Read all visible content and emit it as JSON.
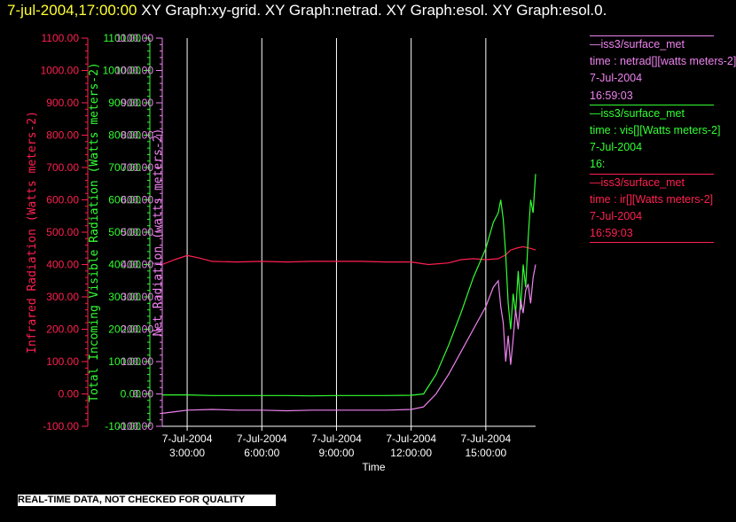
{
  "header": {
    "timestamp": "7-jul-2004,17:00:00",
    "graphs": "XY Graph:xy-grid.  XY Graph:netrad.  XY Graph:esol.  XY Graph:esol.0."
  },
  "colors": {
    "ir": "#ff2050",
    "vis": "#33ff33",
    "net": "#ee82ee",
    "grid": "#ffffff",
    "axis": "#ffffff"
  },
  "legend": [
    {
      "key": "net",
      "lines": [
        "—iss3/surface_met",
        "time : netrad[][watts meters-2]",
        "7-Jul-2004",
        "16:59:03"
      ]
    },
    {
      "key": "vis",
      "lines": [
        "—iss3/surface_met",
        "time : vis[][Watts meters-2]",
        "7-Jul-2004",
        "16:"
      ]
    },
    {
      "key": "ir",
      "lines": [
        "—iss3/surface_met",
        "time : ir[][Watts meters-2]",
        "7-Jul-2004",
        "16:59:03"
      ]
    }
  ],
  "disclaimer": "REAL-TIME DATA, NOT CHECKED FOR QUALITY",
  "chart_data": {
    "type": "line",
    "xlabel": "Time",
    "x_ticks": [
      {
        "hour": 3,
        "date": "7-Jul-2004",
        "time": "3:00:00"
      },
      {
        "hour": 6,
        "date": "7-Jul-2004",
        "time": "6:00:00"
      },
      {
        "hour": 9,
        "date": "7-Jul-2004",
        "time": "9:00:00"
      },
      {
        "hour": 12,
        "date": "7-Jul-2004",
        "time": "12:00:00"
      },
      {
        "hour": 15,
        "date": "7-Jul-2004",
        "time": "15:00:00"
      }
    ],
    "xlim": [
      2.0,
      17.0
    ],
    "ylim": [
      -100,
      1100
    ],
    "y_ticks": [
      "-100.00",
      "0.00",
      "100.00",
      "200.00",
      "300.00",
      "400.00",
      "500.00",
      "600.00",
      "700.00",
      "800.00",
      "900.00",
      "1000.00",
      "1100.00"
    ],
    "grid": "vertical-at-x-ticks",
    "y_axes": [
      {
        "key": "ir",
        "label": "Infrared Radiation (Watts meters-2)"
      },
      {
        "key": "vis",
        "label": "Total Incoming Visible Radiation (Watts meters-2)"
      },
      {
        "key": "net",
        "label": "Net Radiation (watts meters-2)"
      }
    ],
    "series": [
      {
        "key": "ir",
        "x": [
          2.0,
          2.5,
          3.0,
          3.5,
          4.0,
          5.0,
          6.0,
          7.0,
          8.0,
          9.0,
          10.0,
          11.0,
          12.0,
          12.7,
          13.5,
          14.0,
          14.5,
          15.0,
          15.5,
          15.8,
          16.0,
          16.3,
          16.5,
          16.8,
          17.0
        ],
        "y": [
          400,
          415,
          428,
          420,
          410,
          408,
          410,
          408,
          410,
          410,
          410,
          408,
          408,
          400,
          405,
          415,
          418,
          415,
          418,
          430,
          445,
          452,
          455,
          450,
          445
        ]
      },
      {
        "key": "vis",
        "x": [
          2.0,
          3.0,
          4.0,
          5.0,
          6.0,
          7.0,
          8.0,
          9.0,
          10.0,
          11.0,
          12.0,
          12.5,
          13.0,
          13.5,
          14.0,
          14.5,
          15.0,
          15.3,
          15.5,
          15.6,
          15.7,
          15.8,
          15.9,
          16.0,
          16.1,
          16.2,
          16.3,
          16.4,
          16.5,
          16.6,
          16.7,
          16.8,
          16.9,
          17.0
        ],
        "y": [
          -3,
          -3,
          -5,
          -5,
          -5,
          -5,
          -6,
          -5,
          -5,
          -5,
          -4,
          0,
          60,
          150,
          250,
          360,
          450,
          530,
          560,
          600,
          540,
          430,
          280,
          200,
          310,
          250,
          380,
          260,
          400,
          330,
          480,
          600,
          560,
          680
        ]
      },
      {
        "key": "net",
        "x": [
          2.0,
          2.5,
          3.0,
          4.0,
          5.0,
          6.0,
          7.0,
          8.0,
          9.0,
          10.0,
          11.0,
          12.0,
          12.5,
          13.0,
          13.5,
          14.0,
          14.5,
          15.0,
          15.3,
          15.5,
          15.6,
          15.7,
          15.8,
          15.9,
          16.0,
          16.1,
          16.2,
          16.3,
          16.4,
          16.5,
          16.6,
          16.7,
          16.8,
          16.9,
          17.0
        ],
        "y": [
          -60,
          -55,
          -50,
          -48,
          -50,
          -50,
          -52,
          -50,
          -50,
          -50,
          -50,
          -48,
          -40,
          0,
          60,
          130,
          200,
          270,
          330,
          350,
          270,
          220,
          100,
          180,
          90,
          170,
          260,
          200,
          290,
          250,
          320,
          340,
          280,
          360,
          400
        ]
      }
    ]
  }
}
